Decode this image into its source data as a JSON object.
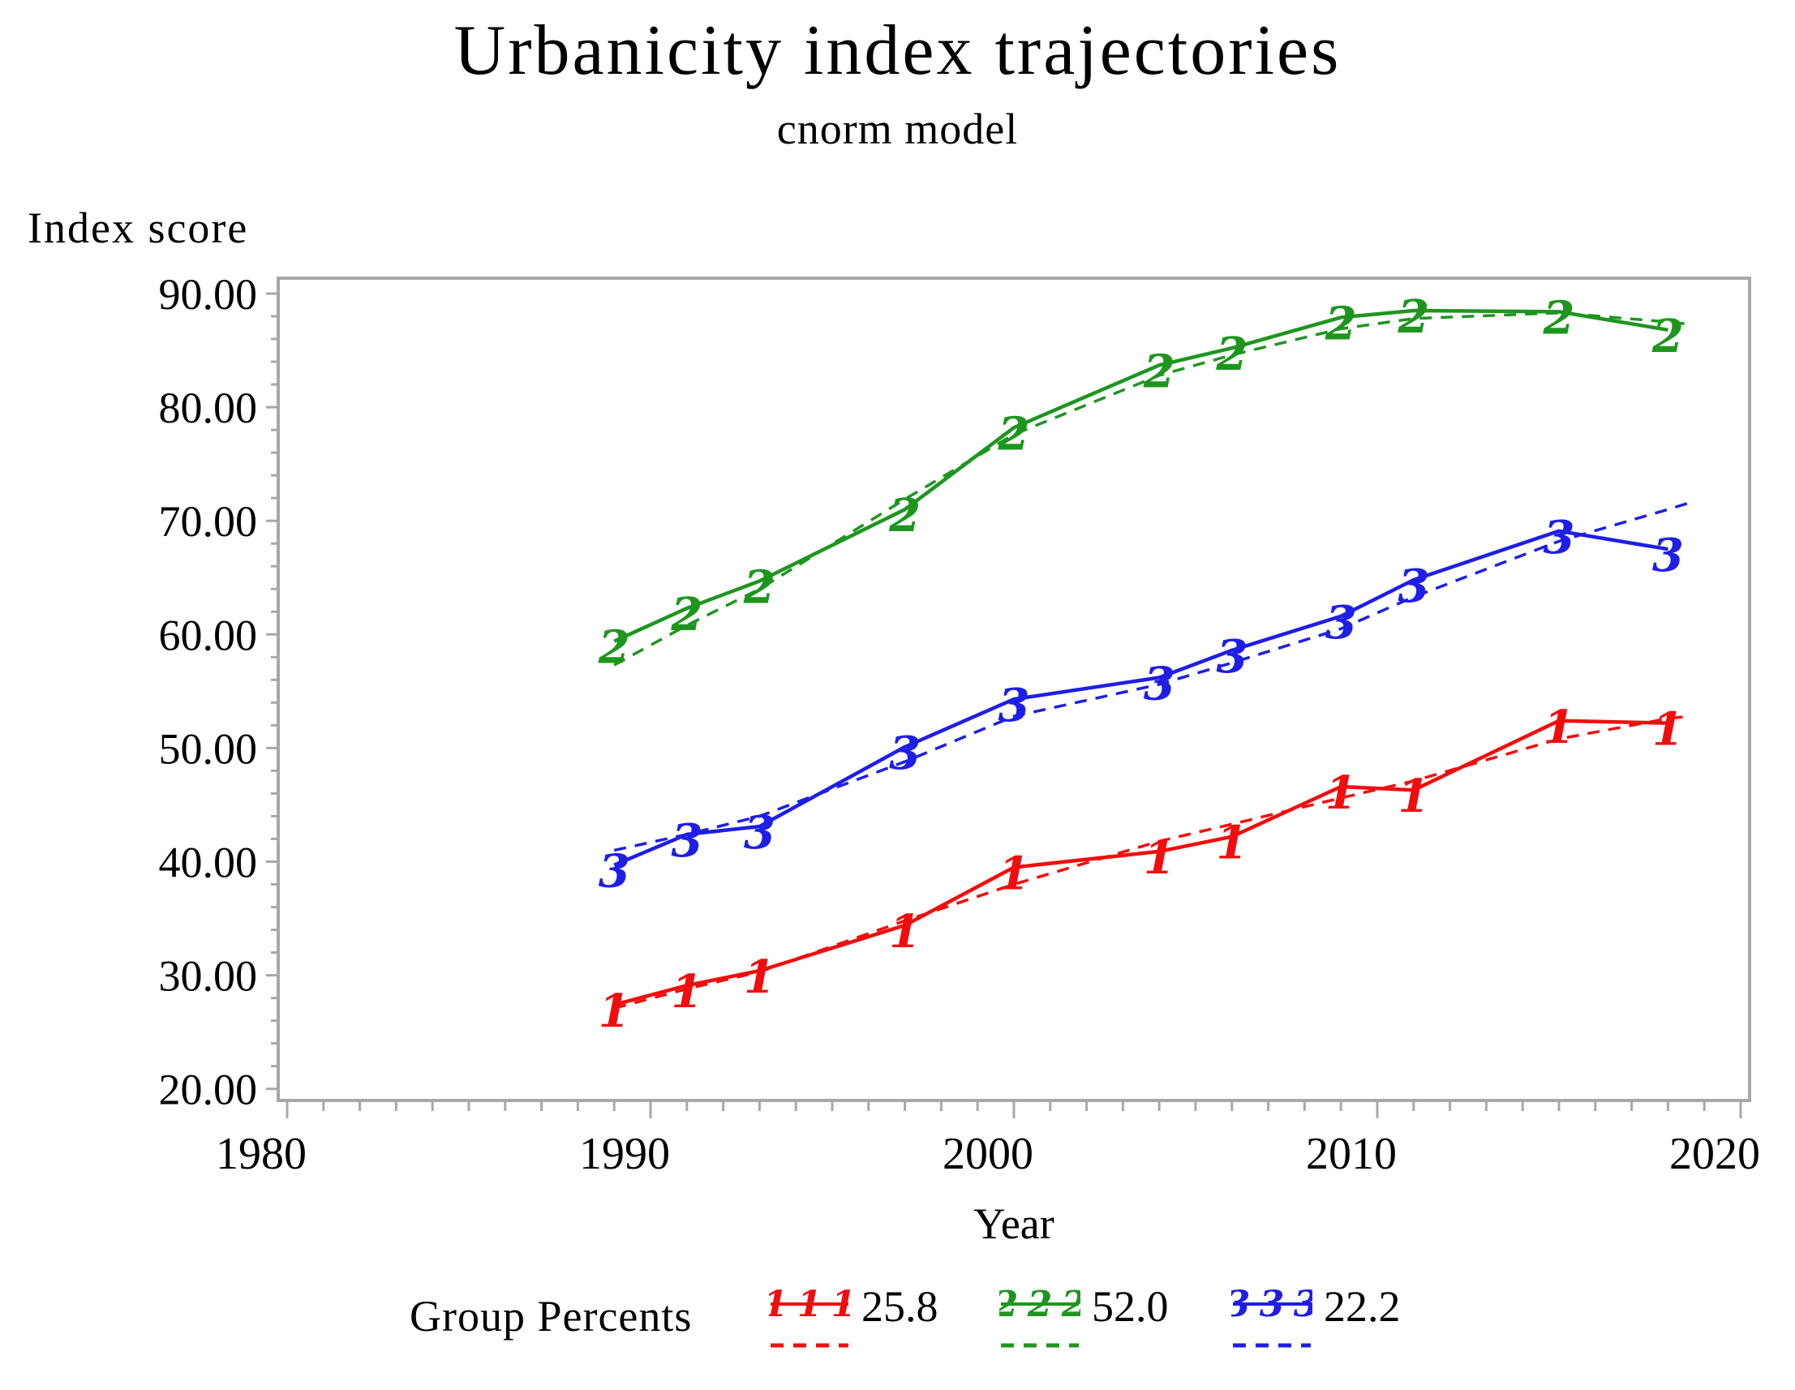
{
  "title": "Urbanicity index trajectories",
  "subtitle": "cnorm model",
  "y_axis_label": "Index score",
  "x_axis_label": "Year",
  "colors": {
    "group1": "#f20d0d",
    "group2": "#1e961e",
    "group3": "#1e1ee6",
    "frame": "#a8a8a8",
    "text": "#000000",
    "background": "#ffffff"
  },
  "legend": {
    "label": "Group Percents",
    "items": [
      {
        "marker": "1",
        "percent": "25.8",
        "color": "#f20d0d"
      },
      {
        "marker": "2",
        "percent": "52.0",
        "color": "#1e961e"
      },
      {
        "marker": "3",
        "percent": "22.2",
        "color": "#1e1ee6"
      }
    ]
  },
  "chart_data": {
    "type": "line",
    "title": "Urbanicity index trajectories",
    "subtitle": "cnorm model",
    "xlabel": "Year",
    "ylabel": "Index score",
    "xlim": [
      1979.7,
      2020.3
    ],
    "ylim": [
      19.0,
      91.4
    ],
    "x_ticks_major": [
      1980,
      1990,
      2000,
      2010,
      2020
    ],
    "x_tick_labels": [
      "1980",
      "1990",
      "2000",
      "2010",
      "2020"
    ],
    "x_minor_tick_step": 1,
    "y_ticks_major": [
      20,
      30,
      40,
      50,
      60,
      70,
      80,
      90
    ],
    "y_tick_labels": [
      "20.00",
      "30.00",
      "40.00",
      "50.00",
      "60.00",
      "70.00",
      "80.00",
      "90.00"
    ],
    "y_minor_tick_step": 2,
    "grid": false,
    "legend_position": "bottom",
    "x_observed": [
      1989,
      1991,
      1993,
      1997,
      2000,
      2004,
      2006,
      2009,
      2011,
      2015,
      2018
    ],
    "x_predicted": [
      1989,
      1991,
      1993,
      1997,
      2000,
      2004,
      2006,
      2009,
      2011,
      2015,
      2018,
      2018.6
    ],
    "series": [
      {
        "name": "group-1-observed",
        "group": "1",
        "percent": "25.8",
        "style": "solid",
        "marker": "1",
        "color": "#f20d0d",
        "x": "x_observed",
        "values": [
          27.4,
          29.1,
          30.4,
          34.4,
          39.5,
          40.9,
          42.2,
          46.6,
          46.3,
          52.4,
          52.2
        ]
      },
      {
        "name": "group-1-predicted",
        "group": "1",
        "style": "dashed",
        "marker": null,
        "color": "#f20d0d",
        "x": "x_predicted",
        "values": [
          27.1,
          28.8,
          30.3,
          34.8,
          38.0,
          41.8,
          43.3,
          45.6,
          47.1,
          50.8,
          52.6,
          52.8
        ]
      },
      {
        "name": "group-2-observed",
        "group": "2",
        "percent": "52.0",
        "style": "solid",
        "marker": "2",
        "color": "#1e961e",
        "x": "x_observed",
        "values": [
          59.4,
          62.3,
          64.7,
          71.0,
          78.2,
          83.7,
          85.2,
          87.9,
          88.5,
          88.4,
          86.8
        ]
      },
      {
        "name": "group-2-predicted",
        "group": "2",
        "style": "dashed",
        "marker": null,
        "color": "#1e961e",
        "x": "x_predicted",
        "values": [
          57.3,
          60.8,
          64.0,
          71.9,
          77.6,
          82.8,
          84.6,
          86.9,
          87.8,
          88.3,
          87.5,
          87.3
        ]
      },
      {
        "name": "group-3-observed",
        "group": "3",
        "percent": "22.2",
        "style": "solid",
        "marker": "3",
        "color": "#1e1ee6",
        "x": "x_observed",
        "values": [
          39.7,
          42.4,
          43.1,
          50.1,
          54.3,
          56.2,
          58.6,
          61.6,
          64.8,
          69.1,
          67.5
        ]
      },
      {
        "name": "group-3-predicted",
        "group": "3",
        "style": "dashed",
        "marker": null,
        "color": "#1e1ee6",
        "x": "x_predicted",
        "values": [
          41.0,
          42.4,
          44.0,
          48.8,
          52.8,
          55.6,
          57.5,
          60.5,
          63.3,
          68.2,
          71.0,
          71.6
        ]
      }
    ]
  }
}
